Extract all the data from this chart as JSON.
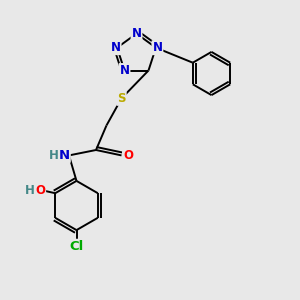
{
  "bg_color": "#e8e8e8",
  "atom_colors": {
    "N": "#0000cc",
    "O": "#ff0000",
    "S": "#bbaa00",
    "Cl": "#00aa00",
    "C": "#000000",
    "H": "#448888"
  },
  "bond_color": "#000000",
  "font_size_atom": 8.5,
  "fig_size": [
    3.0,
    3.0
  ],
  "dpi": 100
}
